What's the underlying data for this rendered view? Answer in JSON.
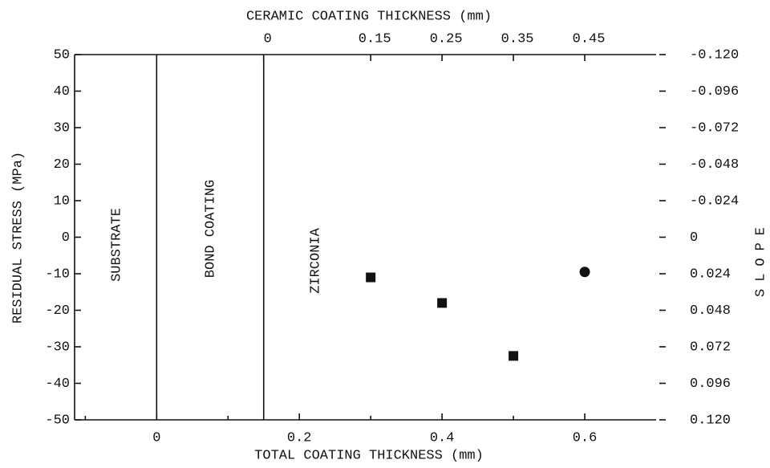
{
  "chart_data": {
    "type": "scatter",
    "xlabel": "TOTAL COATING THICKNESS (mm)",
    "ylabel": "RESIDUAL STRESS (MPa)",
    "x2label": "CERAMIC COATING THICKNESS (mm)",
    "y2label": "SLOPE",
    "xlim": [
      -0.115,
      0.7
    ],
    "xticks": [
      0,
      0.2,
      0.4,
      0.6
    ],
    "xminorticks": [
      -0.1,
      0.1,
      0.3,
      0.5
    ],
    "x2lim": [
      -0.265,
      0.55
    ],
    "x2ticks": [
      0,
      0.15,
      0.25,
      0.35,
      0.45
    ],
    "ylim": [
      -50,
      50
    ],
    "yticks": [
      -50,
      -40,
      -30,
      -20,
      -10,
      0,
      10,
      20,
      30,
      40,
      50
    ],
    "y2lim": [
      0.12,
      -0.12
    ],
    "y2ticks": [
      {
        "value": -0.12,
        "label": "-0.120"
      },
      {
        "value": -0.096,
        "label": "-0.096"
      },
      {
        "value": -0.072,
        "label": "-0.072"
      },
      {
        "value": -0.048,
        "label": "-0.048"
      },
      {
        "value": -0.024,
        "label": "-0.024"
      },
      0,
      {
        "value": 0.024,
        "label": "0.024"
      },
      {
        "value": 0.048,
        "label": "0.048"
      },
      {
        "value": 0.072,
        "label": "0.072"
      },
      {
        "value": 0.096,
        "label": "0.096"
      },
      {
        "value": 0.12,
        "label": "0.120"
      }
    ],
    "region_boundaries": [
      0,
      0.15
    ],
    "annotations": [
      "SUBSTRATE",
      "BOND COATING",
      "ZIRCONIA"
    ],
    "series": [
      {
        "marker": "square",
        "color": "#111111",
        "x": [
          0.3,
          0.4,
          0.5
        ],
        "values": [
          -11,
          -18,
          -32.5
        ]
      },
      {
        "marker": "circle",
        "color": "#111111",
        "x": [
          0.6
        ],
        "values": [
          -9.5
        ]
      }
    ]
  }
}
